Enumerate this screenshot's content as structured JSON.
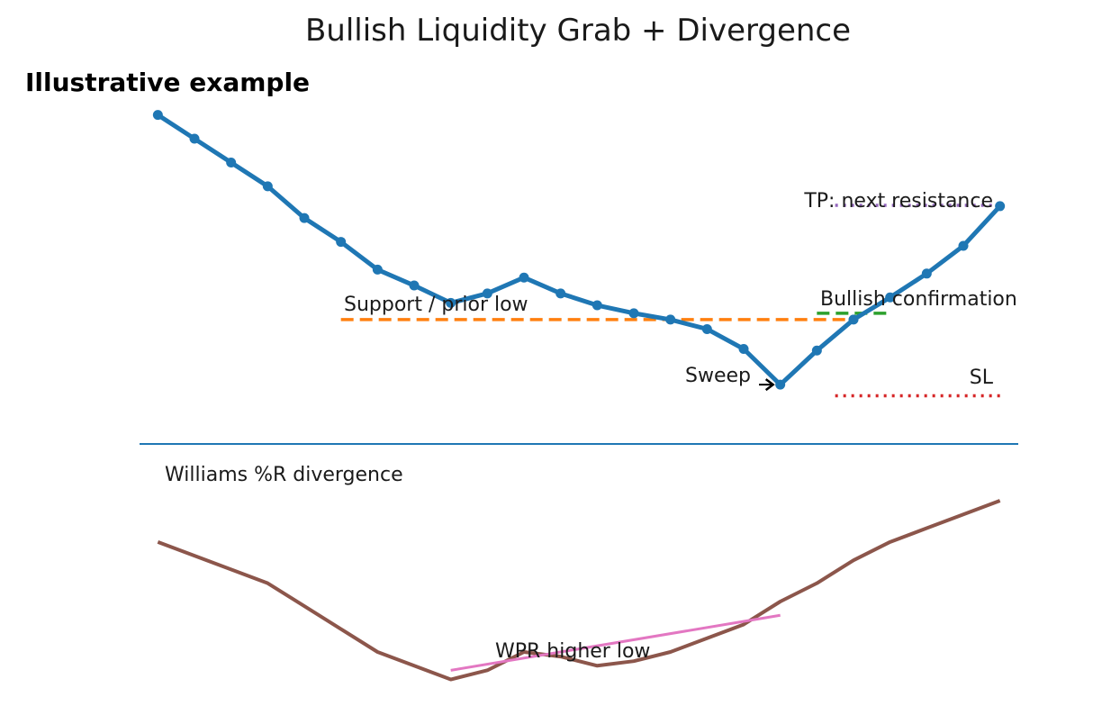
{
  "title": "Bullish Liquidity Grab + Divergence",
  "subtitle": "Illustrative example",
  "chart_data": [
    {
      "type": "line",
      "panel": "price",
      "x": [
        0,
        1,
        2,
        3,
        4,
        5,
        6,
        7,
        8,
        9,
        10,
        11,
        12,
        13,
        14,
        15,
        16,
        17,
        18,
        19,
        20,
        21,
        22,
        23
      ],
      "series": [
        {
          "values": [
            120.0,
            117.0,
            114.0,
            111.0,
            107.0,
            104.0,
            100.5,
            98.5,
            96.3,
            97.5,
            99.5,
            97.5,
            96.0,
            95.0,
            94.2,
            93.0,
            90.5,
            86.0,
            90.3,
            94.2,
            97.0,
            100.0,
            103.5,
            108.5
          ],
          "color": "#1f77b4"
        }
      ],
      "reference_lines": [
        {
          "label": "Support / prior low",
          "y": 94.2,
          "x_start": 5,
          "x_end": 19,
          "style": "dashed",
          "color": "#ff7f0e"
        },
        {
          "label": "TP: next resistance",
          "y": 108.6,
          "x_start": 18.5,
          "x_end": 23,
          "style": "dotted",
          "color": "#9467bd"
        },
        {
          "label": "Bullish confirmation",
          "y": 95.0,
          "x_start": 18,
          "x_end": 20,
          "style": "dashed",
          "color": "#2ca02c"
        },
        {
          "label": "SL",
          "y": 84.6,
          "x_start": 18.5,
          "x_end": 23,
          "style": "dotted",
          "color": "#d62728"
        }
      ],
      "annotations": [
        {
          "text": "Sweep",
          "arrow_to_x": 17,
          "arrow_to_y": 86.0
        }
      ],
      "ylim": [
        80,
        122
      ],
      "xlim": [
        -0.5,
        23.5
      ],
      "grid": false
    },
    {
      "type": "line",
      "panel": "indicator",
      "label": "Williams %R divergence",
      "x": [
        0,
        1,
        2,
        3,
        4,
        5,
        6,
        7,
        8,
        9,
        10,
        11,
        12,
        13,
        14,
        15,
        16,
        17,
        18,
        19,
        20,
        21,
        22,
        23
      ],
      "series": [
        {
          "values": [
            -40,
            -43,
            -46,
            -49,
            -54,
            -59,
            -64,
            -67,
            -70,
            -68,
            -64,
            -65,
            -67,
            -66,
            -64,
            -61,
            -58,
            -53,
            -49,
            -44,
            -40,
            -37,
            -34,
            -31
          ],
          "color": "#8c564b"
        }
      ],
      "divergence_line": {
        "label": "WPR higher low",
        "x_start": 8,
        "y_start": -68,
        "x_end": 17,
        "y_end": -56,
        "color": "#e377c2"
      },
      "ylim": [
        -75,
        -20
      ],
      "xlim": [
        -0.5,
        23.5
      ],
      "grid": false
    }
  ],
  "colors": {
    "axis_divider": "#1f77b4",
    "text": "#1a1a1a"
  }
}
